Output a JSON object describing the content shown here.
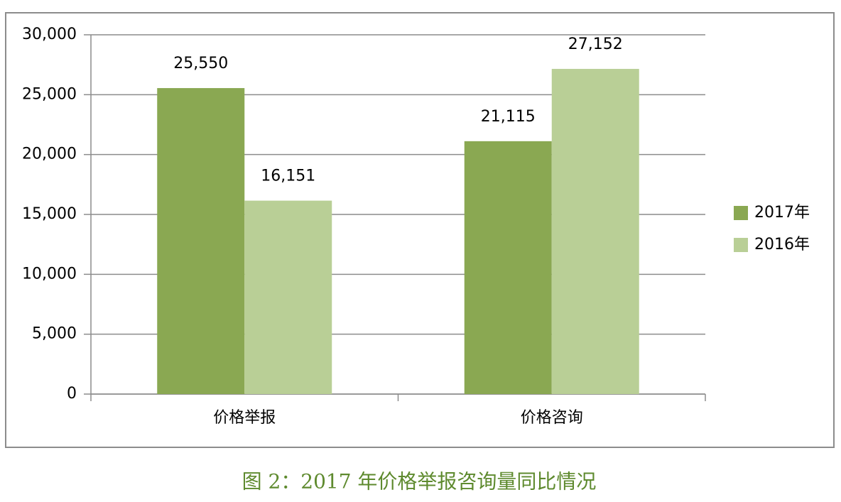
{
  "chart_data": {
    "type": "bar",
    "caption": "图 2：2017 年价格举报咨询量同比情况",
    "categories": [
      "价格举报",
      "价格咨询"
    ],
    "series": [
      {
        "name": "2017年",
        "color": "#8aa852",
        "values": [
          25550,
          21115
        ],
        "value_labels": [
          "25,550",
          "21,115"
        ]
      },
      {
        "name": "2016年",
        "color": "#b9cf96",
        "values": [
          16151,
          27152
        ],
        "value_labels": [
          "16,151",
          "27,152"
        ]
      }
    ],
    "ylim": [
      0,
      30000
    ],
    "yticks": [
      0,
      {
        "value": 5000,
        "label": "5,000"
      },
      {
        "value": 10000,
        "label": "10,000"
      },
      {
        "value": 15000,
        "label": "15,000"
      },
      {
        "value": 20000,
        "label": "20,000"
      },
      {
        "value": 25000,
        "label": "25,000"
      },
      {
        "value": 30000,
        "label": "30,000"
      }
    ],
    "grid": true,
    "legend": "right"
  }
}
